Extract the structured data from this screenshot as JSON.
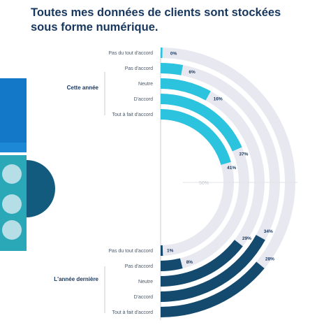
{
  "title": "Toutes mes données de clients sont stockées sous forme numérique.",
  "colors": {
    "title": "#17375e",
    "current_year": "#2bc3dd",
    "last_year": "#134a6e",
    "track": "#e8e9f0",
    "label": "#4a5868"
  },
  "chart_data": {
    "type": "radial-bar",
    "title": "Toutes mes données de clients sont stockées sous forme numérique.",
    "center_label": "50%",
    "categories": [
      "Pas du tout d'accord",
      "Pas d'accord",
      "Neutre",
      "D'accord",
      "Tout à fait d'accord"
    ],
    "unit": "%",
    "series": [
      {
        "name": "Cette année",
        "categories": [
          "Pas du tout d'accord",
          "Pas d'accord",
          "Neutre",
          "D'accord",
          "Tout à fait d'accord"
        ],
        "values": [
          0,
          6,
          16,
          37,
          41
        ],
        "labels": [
          "0%",
          "6%",
          "16%",
          "37%",
          "41%"
        ]
      },
      {
        "name": "L'année dernière",
        "categories": [
          "Tout à fait d'accord",
          "D'accord",
          "Neutre",
          "Pas d'accord",
          "Pas du tout d'accord"
        ],
        "values": [
          28,
          34,
          29,
          8,
          1
        ],
        "labels": [
          "28%",
          "34%",
          "29%",
          "8%",
          "1%"
        ]
      }
    ]
  }
}
